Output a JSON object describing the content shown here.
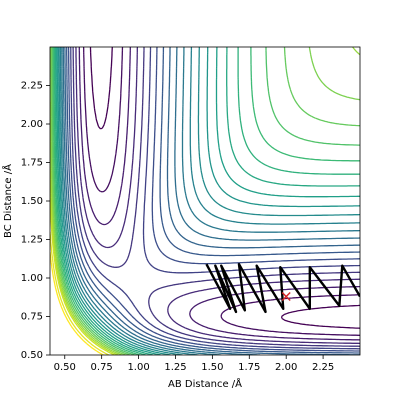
{
  "chart_data": {
    "type": "contour",
    "xlabel": "AB Distance /Å",
    "ylabel": "BC Distance /Å",
    "xlim": [
      0.4,
      2.5
    ],
    "ylim": [
      0.5,
      2.5
    ],
    "xticks": [
      {
        "value": 0.5,
        "label": "0.50"
      },
      {
        "value": 0.75,
        "label": "0.75"
      },
      {
        "value": 1.0,
        "label": "1.00"
      },
      {
        "value": 1.25,
        "label": "1.25"
      },
      {
        "value": 1.5,
        "label": "1.50"
      },
      {
        "value": 1.75,
        "label": "1.75"
      },
      {
        "value": 2.0,
        "label": "2.00"
      },
      {
        "value": 2.25,
        "label": "2.25"
      }
    ],
    "yticks": [
      {
        "value": 0.5,
        "label": "0.50"
      },
      {
        "value": 0.75,
        "label": "0.75"
      },
      {
        "value": 1.0,
        "label": "1.00"
      },
      {
        "value": 1.25,
        "label": "1.25"
      },
      {
        "value": 1.5,
        "label": "1.50"
      },
      {
        "value": 1.75,
        "label": "1.75"
      },
      {
        "value": 2.0,
        "label": "2.00"
      },
      {
        "value": 2.25,
        "label": "2.25"
      }
    ],
    "levels": [
      -4.6,
      -4.4,
      -4.2,
      -4.0,
      -3.8,
      -3.6,
      -3.4,
      -3.2,
      -3.0,
      -2.8,
      -2.6,
      -2.4,
      -2.2,
      -2.0,
      -1.8,
      -1.6,
      -1.4,
      -1.2,
      -1.0,
      -0.8,
      -0.6,
      -0.4,
      -0.2,
      0.0,
      0.4,
      0.8
    ],
    "colormap": "viridis",
    "trajectory": {
      "color": "#000000",
      "x": [
        1.46,
        1.62,
        1.52,
        1.66,
        1.56,
        1.72,
        1.68,
        1.86,
        1.8,
        1.98,
        1.96,
        2.16,
        2.16,
        2.36,
        2.38,
        2.5
      ],
      "y": [
        1.09,
        0.8,
        1.08,
        0.78,
        1.08,
        0.79,
        1.09,
        0.78,
        1.08,
        0.8,
        1.07,
        0.8,
        1.07,
        0.82,
        1.08,
        0.88
      ]
    },
    "marker": {
      "x": 2.0,
      "y": 0.88,
      "color": "#d62728"
    }
  }
}
